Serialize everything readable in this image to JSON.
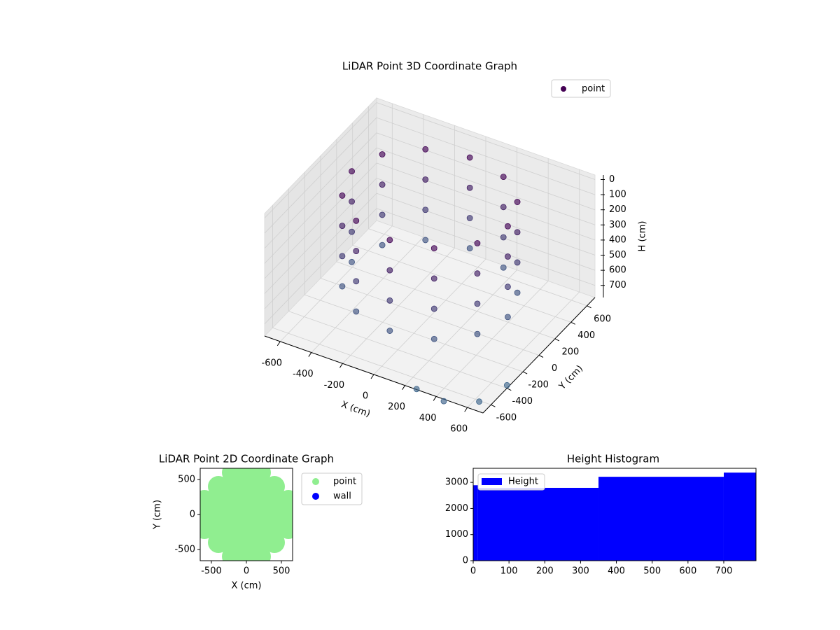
{
  "chart_data": [
    {
      "type": "scatter3d",
      "title": "LiDAR Point 3D Coordinate Graph",
      "xlabel": "X (cm)",
      "ylabel": "Y (cm)",
      "zlabel": "H (cm)",
      "xlim": [
        -700,
        700
      ],
      "ylim": [
        -700,
        700
      ],
      "zlim": [
        780,
        -30
      ],
      "xticks": [
        -600,
        -400,
        -200,
        0,
        200,
        400,
        600
      ],
      "yticks": [
        -600,
        -400,
        -200,
        0,
        200,
        400,
        600
      ],
      "zticks": [
        0,
        100,
        200,
        300,
        400,
        500,
        600,
        700
      ],
      "grid": true,
      "legend": "upper right",
      "colormap": [
        "#440154",
        "#3e6a8e"
      ],
      "series": [
        {
          "name": "point",
          "x": [
            500,
            433,
            250,
            0,
            -250,
            -433,
            -500,
            -433,
            -250,
            0,
            250,
            433,
            500,
            433,
            250,
            0,
            -250,
            -433,
            -500,
            -433,
            -250,
            0,
            250,
            433,
            500,
            433,
            250,
            0,
            -250,
            -433,
            -500,
            -433,
            -250,
            0,
            250,
            433,
            500,
            433,
            250,
            0,
            -250,
            -433,
            -500,
            -433,
            -250,
            0,
            250,
            433,
            650,
            500,
            700,
            300
          ],
          "y": [
            0,
            250,
            433,
            500,
            433,
            250,
            0,
            -250,
            -433,
            -500,
            -433,
            -250,
            0,
            250,
            433,
            500,
            433,
            250,
            0,
            -250,
            -433,
            -500,
            -433,
            -250,
            0,
            250,
            433,
            500,
            433,
            250,
            0,
            -250,
            -433,
            -500,
            -433,
            -250,
            0,
            250,
            433,
            500,
            433,
            250,
            0,
            -250,
            -433,
            -500,
            -433,
            -250,
            -650,
            -800,
            -400,
            -750
          ],
          "z": [
            0,
            0,
            0,
            0,
            0,
            0,
            0,
            0,
            0,
            0,
            0,
            0,
            200,
            200,
            200,
            200,
            200,
            200,
            200,
            200,
            200,
            200,
            200,
            200,
            400,
            400,
            400,
            400,
            400,
            400,
            400,
            400,
            400,
            400,
            400,
            400,
            600,
            600,
            600,
            600,
            600,
            600,
            600,
            600,
            600,
            600,
            600,
            600,
            750,
            720,
            760,
            740
          ]
        }
      ]
    },
    {
      "type": "scatter",
      "title": "LiDAR Point 2D Coordinate Graph",
      "xlabel": "X (cm)",
      "ylabel": "Y (cm)",
      "xlim": [
        -660,
        660
      ],
      "ylim": [
        -660,
        660
      ],
      "xticks": [
        -500,
        0,
        500
      ],
      "yticks": [
        -500,
        0,
        500
      ],
      "legend": "outside upper right",
      "series": [
        {
          "name": "point",
          "color": "#90ee90",
          "x": [
            -600,
            -600,
            -600,
            -400,
            -400,
            -400,
            -400,
            -400,
            -200,
            -200,
            -200,
            -200,
            -200,
            -200,
            -200,
            0,
            0,
            0,
            0,
            0,
            0,
            0,
            200,
            200,
            200,
            200,
            200,
            200,
            200,
            400,
            400,
            400,
            400,
            400,
            600,
            600,
            600
          ],
          "y": [
            -200,
            0,
            200,
            -400,
            -200,
            0,
            200,
            400,
            -600,
            -400,
            -200,
            0,
            200,
            400,
            600,
            -600,
            -400,
            -200,
            0,
            200,
            400,
            600,
            -600,
            -400,
            -200,
            0,
            200,
            400,
            600,
            -400,
            -200,
            0,
            200,
            400,
            -200,
            0,
            200
          ]
        },
        {
          "name": "wall",
          "color": "#0000ff",
          "x": [],
          "y": []
        }
      ]
    },
    {
      "type": "histogram",
      "title": "Height Histogram",
      "bins": [
        0,
        13,
        350,
        700,
        790
      ],
      "xlim": [
        0,
        790
      ],
      "ylim": [
        0,
        3540
      ],
      "xticks": [
        0,
        100,
        200,
        300,
        400,
        500,
        600,
        700
      ],
      "yticks": [
        0,
        1000,
        2000,
        3000
      ],
      "legend": "upper left",
      "series": [
        {
          "name": "Height",
          "color": "#0000ff",
          "values": [
            2890,
            2790,
            3215,
            3375
          ]
        }
      ]
    }
  ]
}
